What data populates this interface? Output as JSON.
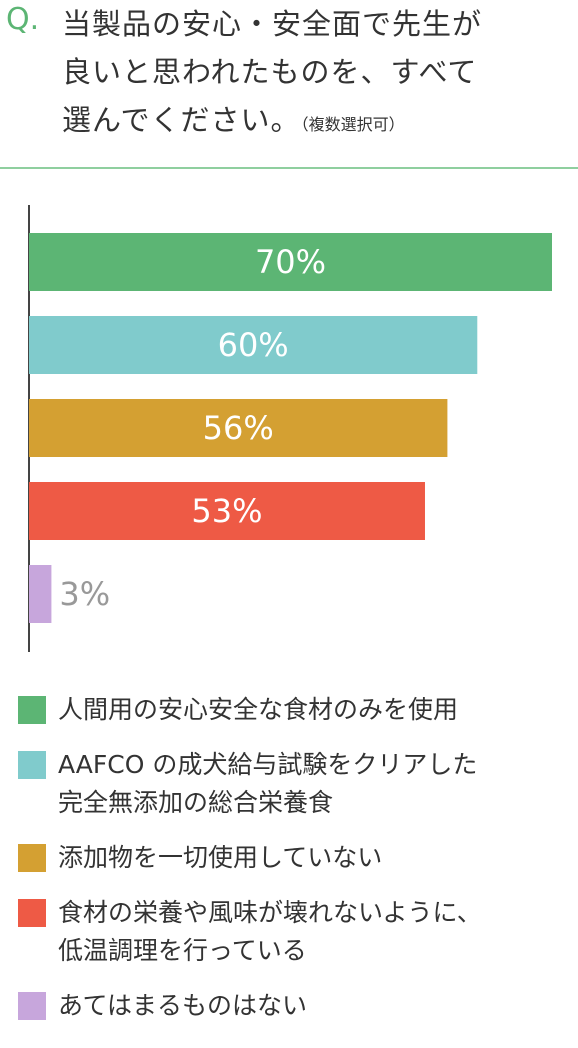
{
  "chart_data": {
    "type": "bar",
    "orientation": "horizontal",
    "question_label": "Q.",
    "title": "当製品の安心・安全面で先生が\n良いと思われたものを、すべて\n選んでください。",
    "note": "（複数選択可）",
    "categories": [
      "人間用の安心安全な食材のみを使用",
      "AAFCO の成犬給与試験をクリアした\n完全無添加の総合栄養食",
      "添加物を一切使用していない",
      "食材の栄養や風味が壊れないように、\n低温調理を行っている",
      "あてはまるものはない"
    ],
    "values": [
      70,
      60,
      56,
      53,
      3
    ],
    "value_labels": [
      "70%",
      "60%",
      "56%",
      "53%",
      "3%"
    ],
    "colors": [
      "#5cb574",
      "#80cbcc",
      "#d4a032",
      "#ee5a45",
      "#c7a6dc"
    ]
  }
}
